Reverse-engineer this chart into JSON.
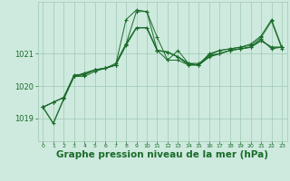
{
  "background_color": "#ceeade",
  "grid_color": "#a0c8b4",
  "line_color": "#1a6b2a",
  "xlabel": "Graphe pression niveau de la mer (hPa)",
  "xlabel_fontsize": 7.5,
  "yticks": [
    1019,
    1020,
    1021
  ],
  "ylim": [
    1018.3,
    1022.6
  ],
  "xlim": [
    -0.5,
    23.5
  ],
  "xticks": [
    0,
    1,
    2,
    3,
    4,
    5,
    6,
    7,
    8,
    9,
    10,
    11,
    12,
    13,
    14,
    15,
    16,
    17,
    18,
    19,
    20,
    21,
    22,
    23
  ],
  "series": [
    {
      "x": [
        0,
        1,
        2,
        3,
        4,
        5,
        6,
        7,
        8,
        9,
        10,
        11,
        12,
        13,
        14,
        15,
        16,
        17,
        18,
        19,
        20,
        21,
        22,
        23
      ],
      "y": [
        1019.35,
        1018.85,
        1019.6,
        1020.3,
        1020.4,
        1020.5,
        1020.55,
        1020.65,
        1021.3,
        1021.8,
        1021.8,
        1021.1,
        1021.05,
        1020.9,
        1020.7,
        1020.65,
        1020.9,
        1021.0,
        1021.1,
        1021.15,
        1021.2,
        1021.4,
        1021.2,
        1021.2
      ],
      "lw": 1.0,
      "ms": 2.5,
      "marker": "+"
    },
    {
      "x": [
        0,
        1,
        2,
        3,
        4,
        5,
        6,
        7,
        8,
        9,
        10,
        11,
        12,
        13,
        14,
        15,
        16,
        17,
        18,
        19,
        20,
        21,
        22,
        23
      ],
      "y": [
        1019.35,
        1019.5,
        1019.65,
        1020.3,
        1020.35,
        1020.5,
        1020.55,
        1020.65,
        1022.05,
        1022.35,
        1022.3,
        1021.5,
        1020.8,
        1021.1,
        1020.7,
        1020.7,
        1020.95,
        1021.1,
        1021.15,
        1021.2,
        1021.3,
        1021.55,
        1022.05,
        1021.2
      ],
      "lw": 0.7,
      "ms": 2.5,
      "marker": "+"
    },
    {
      "x": [
        0,
        1,
        2,
        3,
        4,
        5,
        6,
        7,
        8,
        9,
        10,
        11,
        12,
        13,
        14,
        15,
        16,
        17,
        18,
        19,
        20,
        21,
        22,
        23
      ],
      "y": [
        1019.35,
        1019.5,
        1019.65,
        1020.35,
        1020.35,
        1020.5,
        1020.55,
        1020.7,
        1021.3,
        1022.3,
        1022.3,
        1021.1,
        1021.05,
        1020.9,
        1020.65,
        1020.65,
        1021.0,
        1021.1,
        1021.15,
        1021.2,
        1021.25,
        1021.5,
        1022.0,
        1021.15
      ],
      "lw": 0.7,
      "ms": 2.5,
      "marker": "+"
    },
    {
      "x": [
        0,
        1,
        2,
        3,
        4,
        5,
        6,
        7,
        8,
        9,
        10,
        11,
        12,
        13,
        14,
        15,
        16,
        17,
        18,
        19,
        20,
        21,
        22,
        23
      ],
      "y": [
        1019.35,
        1019.5,
        1019.65,
        1020.3,
        1020.3,
        1020.45,
        1020.55,
        1020.65,
        1021.25,
        1021.8,
        1021.8,
        1021.1,
        1020.8,
        1020.8,
        1020.65,
        1020.65,
        1020.95,
        1021.0,
        1021.1,
        1021.15,
        1021.2,
        1021.45,
        1021.15,
        1021.2
      ],
      "lw": 0.7,
      "ms": 2.5,
      "marker": "+"
    }
  ]
}
